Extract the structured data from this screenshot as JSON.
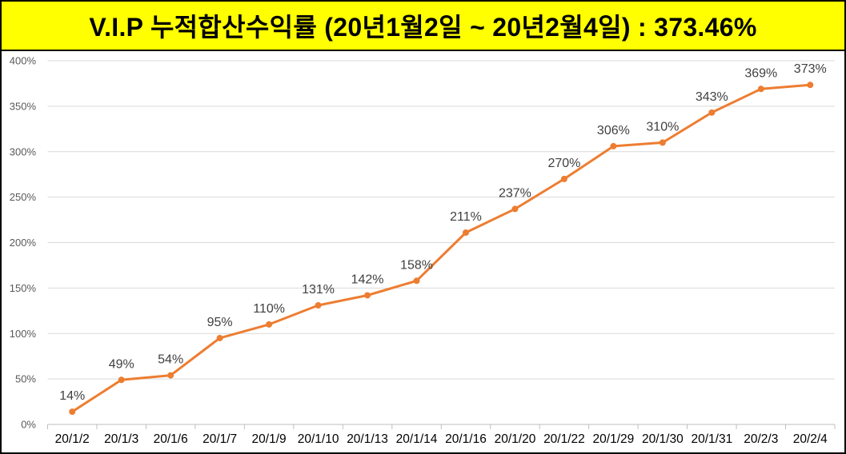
{
  "colors": {
    "banner_bg": "#FFFF00",
    "frame": "#000000",
    "line": "#ED7D31",
    "grid": "#D9D9D9"
  },
  "chart_data": {
    "type": "line",
    "title": "V.I.P 누적합산수익률 (20년1월2일 ~ 20년2월4일) : 373.46%",
    "xlabel": "",
    "ylabel": "",
    "categories": [
      "20/1/2",
      "20/1/3",
      "20/1/6",
      "20/1/7",
      "20/1/9",
      "20/1/10",
      "20/1/13",
      "20/1/14",
      "20/1/16",
      "20/1/20",
      "20/1/22",
      "20/1/29",
      "20/1/30",
      "20/1/31",
      "20/2/3",
      "20/2/4"
    ],
    "series": [
      {
        "color": "#ED7D31",
        "markers": true,
        "values": [
          14,
          49,
          54,
          95,
          110,
          131,
          142,
          158,
          211,
          237,
          270,
          306,
          310,
          343,
          369,
          373.46
        ],
        "data_labels": [
          "14%",
          "49%",
          "54%",
          "95%",
          "110%",
          "131%",
          "142%",
          "158%",
          "211%",
          "237%",
          "270%",
          "306%",
          "310%",
          "343%",
          "369%",
          "373%"
        ]
      }
    ],
    "ylim": [
      0,
      400
    ],
    "yticks": [
      0,
      50,
      100,
      150,
      200,
      250,
      300,
      350,
      400
    ],
    "ytick_labels": [
      "0%",
      "50%",
      "100%",
      "150%",
      "200%",
      "250%",
      "300%",
      "350%",
      "400%"
    ],
    "grid": true,
    "legend": "none"
  }
}
